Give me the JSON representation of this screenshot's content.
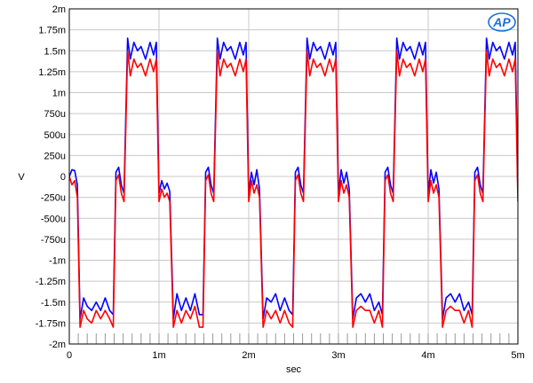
{
  "chart_data": {
    "type": "line",
    "title": "",
    "xlabel": "sec",
    "ylabel": "V",
    "xlim": [
      0,
      0.005
    ],
    "ylim": [
      -0.002,
      0.002
    ],
    "grid": true,
    "x_ticks": [
      {
        "value": 0,
        "label": "0"
      },
      {
        "value": 0.001,
        "label": "1m"
      },
      {
        "value": 0.002,
        "label": "2m"
      },
      {
        "value": 0.003,
        "label": "3m"
      },
      {
        "value": 0.004,
        "label": "4m"
      },
      {
        "value": 0.005,
        "label": "5m"
      }
    ],
    "y_ticks": [
      {
        "value": 0.002,
        "label": "2m"
      },
      {
        "value": 0.00175,
        "label": "1.75m"
      },
      {
        "value": 0.0015,
        "label": "1.5m"
      },
      {
        "value": 0.00125,
        "label": "1.25m"
      },
      {
        "value": 0.001,
        "label": "1m"
      },
      {
        "value": 0.00075,
        "label": "750u"
      },
      {
        "value": 0.0005,
        "label": "500u"
      },
      {
        "value": 0.00025,
        "label": "250u"
      },
      {
        "value": 0,
        "label": "0"
      },
      {
        "value": -0.00025,
        "label": "-250u"
      },
      {
        "value": -0.0005,
        "label": "-500u"
      },
      {
        "value": -0.00075,
        "label": "-750u"
      },
      {
        "value": -0.001,
        "label": "-1m"
      },
      {
        "value": -0.00125,
        "label": "-1.25m"
      },
      {
        "value": -0.0015,
        "label": "-1.5m"
      },
      {
        "value": -0.00175,
        "label": "-1.75m"
      },
      {
        "value": -0.002,
        "label": "-2m"
      }
    ],
    "x_minor_step": 0.0001,
    "series": [
      {
        "color": "#0000ff",
        "x": [
          0,
          3e-05,
          6e-05,
          9e-05,
          0.00012,
          0.00016,
          0.0002,
          0.00025,
          0.0003,
          0.00035,
          0.0004,
          0.00045,
          0.00049,
          0.00052,
          0.00055,
          0.00058,
          0.00061,
          0.00065,
          0.00068,
          0.00072,
          0.00076,
          0.0008,
          0.00085,
          0.0009,
          0.00094,
          0.00097,
          0.001,
          0.00103,
          0.00106,
          0.00109,
          0.00112,
          0.00116,
          0.0012,
          0.00125,
          0.0013,
          0.00135,
          0.0014,
          0.00145,
          0.00149,
          0.00152,
          0.00155,
          0.00158,
          0.00161,
          0.00165,
          0.00168,
          0.00172,
          0.00176,
          0.0018,
          0.00185,
          0.0019,
          0.00194,
          0.00197,
          0.002,
          0.00203,
          0.00206,
          0.00209,
          0.00212,
          0.00216,
          0.0022,
          0.00225,
          0.0023,
          0.00235,
          0.0024,
          0.00245,
          0.00249,
          0.00252,
          0.00255,
          0.00258,
          0.00261,
          0.00265,
          0.00268,
          0.00272,
          0.00276,
          0.0028,
          0.00285,
          0.0029,
          0.00294,
          0.00297,
          0.003,
          0.00303,
          0.00306,
          0.00309,
          0.00312,
          0.00316,
          0.0032,
          0.00325,
          0.0033,
          0.00335,
          0.0034,
          0.00345,
          0.00349,
          0.00352,
          0.00355,
          0.00358,
          0.00361,
          0.00365,
          0.00368,
          0.00372,
          0.00376,
          0.0038,
          0.00385,
          0.0039,
          0.00394,
          0.00397,
          0.004,
          0.00403,
          0.00406,
          0.00409,
          0.00412,
          0.00416,
          0.0042,
          0.00425,
          0.0043,
          0.00435,
          0.0044,
          0.00445,
          0.00449,
          0.00452,
          0.00455,
          0.00458,
          0.00461,
          0.00465,
          0.00468,
          0.00472,
          0.00476,
          0.0048,
          0.00485,
          0.0049,
          0.00494,
          0.00497,
          0.005
        ],
        "y": [
          0,
          8e-05,
          7e-05,
          -0.0001,
          -0.0017,
          -0.00145,
          -0.00155,
          -0.0016,
          -0.0015,
          -0.0016,
          -0.00145,
          -0.0016,
          -0.00165,
          5e-05,
          0.00011,
          -0.0001,
          -0.0002,
          0.00165,
          0.0014,
          0.0016,
          0.0015,
          0.00155,
          0.0014,
          0.0016,
          0.00145,
          0.0016,
          -0.0002,
          -5e-05,
          -0.00015,
          -8e-05,
          -0.00018,
          -0.0017,
          -0.0014,
          -0.0016,
          -0.00145,
          -0.0016,
          -0.0014,
          -0.00165,
          -0.00165,
          5e-05,
          0.00011,
          -0.0001,
          -0.0002,
          0.00165,
          0.0014,
          0.0016,
          0.0015,
          0.00155,
          0.0014,
          0.0016,
          0.00145,
          0.0016,
          -0.0002,
          5e-05,
          -0.0001,
          8e-05,
          -0.00015,
          -0.0017,
          -0.00145,
          -0.0015,
          -0.0014,
          -0.0016,
          -0.00145,
          -0.0016,
          -0.00165,
          5e-05,
          0.00011,
          -0.0001,
          -0.0002,
          0.00165,
          0.0014,
          0.0016,
          0.0015,
          0.00155,
          0.0014,
          0.0016,
          0.00145,
          0.0016,
          -0.0002,
          8e-05,
          -8e-05,
          5e-05,
          -0.00015,
          -0.0017,
          -0.00145,
          -0.0014,
          -0.0015,
          -0.0014,
          -0.0016,
          -0.0015,
          -0.00165,
          5e-05,
          0.00011,
          -0.0001,
          -0.0002,
          0.00165,
          0.0014,
          0.0016,
          0.0015,
          0.00155,
          0.0014,
          0.0016,
          0.00145,
          0.0016,
          -0.0002,
          8e-05,
          -8e-05,
          5e-05,
          -0.00015,
          -0.0017,
          -0.00145,
          -0.0014,
          -0.0015,
          -0.0014,
          -0.0016,
          -0.0015,
          -0.00165,
          5e-05,
          0.00011,
          -0.0001,
          -0.0002,
          0.00165,
          0.0014,
          0.0016,
          0.0015,
          0.00155,
          0.0014,
          0.0016,
          0.00145,
          0.0016,
          -0.0002
        ]
      },
      {
        "color": "#ff0000",
        "x": [
          0,
          3e-05,
          6e-05,
          9e-05,
          0.00012,
          0.00016,
          0.0002,
          0.00025,
          0.0003,
          0.00035,
          0.0004,
          0.00045,
          0.00049,
          0.00052,
          0.00055,
          0.00058,
          0.00061,
          0.00065,
          0.00068,
          0.00072,
          0.00076,
          0.0008,
          0.00085,
          0.0009,
          0.00094,
          0.00097,
          0.001,
          0.00103,
          0.00106,
          0.00109,
          0.00112,
          0.00116,
          0.0012,
          0.00125,
          0.0013,
          0.00135,
          0.0014,
          0.00145,
          0.00149,
          0.00152,
          0.00155,
          0.00158,
          0.00161,
          0.00165,
          0.00168,
          0.00172,
          0.00176,
          0.0018,
          0.00185,
          0.0019,
          0.00194,
          0.00197,
          0.002,
          0.00203,
          0.00206,
          0.00209,
          0.00212,
          0.00216,
          0.0022,
          0.00225,
          0.0023,
          0.00235,
          0.0024,
          0.00245,
          0.00249,
          0.00252,
          0.00255,
          0.00258,
          0.00261,
          0.00265,
          0.00268,
          0.00272,
          0.00276,
          0.0028,
          0.00285,
          0.0029,
          0.00294,
          0.00297,
          0.003,
          0.00303,
          0.00306,
          0.00309,
          0.00312,
          0.00316,
          0.0032,
          0.00325,
          0.0033,
          0.00335,
          0.0034,
          0.00345,
          0.00349,
          0.00352,
          0.00355,
          0.00358,
          0.00361,
          0.00365,
          0.00368,
          0.00372,
          0.00376,
          0.0038,
          0.00385,
          0.0039,
          0.00394,
          0.00397,
          0.004,
          0.00403,
          0.00406,
          0.00409,
          0.00412,
          0.00416,
          0.0042,
          0.00425,
          0.0043,
          0.00435,
          0.0044,
          0.00445,
          0.00449,
          0.00452,
          0.00455,
          0.00458,
          0.00461,
          0.00465,
          0.00468,
          0.00472,
          0.00476,
          0.0048,
          0.00485,
          0.0049,
          0.00494,
          0.00497,
          0.005
        ],
        "y": [
          0,
          -0.0001,
          -5e-05,
          -0.00025,
          -0.0018,
          -0.0016,
          -0.0017,
          -0.00175,
          -0.0016,
          -0.0017,
          -0.0016,
          -0.0017,
          -0.0018,
          -5e-05,
          2e-05,
          -0.0002,
          -0.0003,
          0.0015,
          0.0012,
          0.0014,
          0.0013,
          0.00135,
          0.0012,
          0.0014,
          0.00125,
          0.0014,
          -0.0003,
          -0.00015,
          -0.00025,
          -0.0002,
          -0.0003,
          -0.0018,
          -0.0016,
          -0.00175,
          -0.0016,
          -0.0017,
          -0.00155,
          -0.0018,
          -0.0018,
          -5e-05,
          2e-05,
          -0.0002,
          -0.0003,
          0.0015,
          0.0012,
          0.0014,
          0.0013,
          0.00135,
          0.0012,
          0.0014,
          0.00125,
          0.0014,
          -0.0003,
          -5e-05,
          -0.0002,
          -0.0001,
          -0.00025,
          -0.0018,
          -0.0016,
          -0.0017,
          -0.0016,
          -0.00175,
          -0.0016,
          -0.00175,
          -0.0018,
          -5e-05,
          2e-05,
          -0.0002,
          -0.0003,
          0.0015,
          0.0012,
          0.0014,
          0.0013,
          0.00135,
          0.0012,
          0.0014,
          0.00125,
          0.0014,
          -0.0003,
          -5e-05,
          -0.0002,
          -0.0001,
          -0.00025,
          -0.0018,
          -0.0016,
          -0.00155,
          -0.0016,
          -0.0016,
          -0.00175,
          -0.0016,
          -0.0018,
          -5e-05,
          2e-05,
          -0.0002,
          -0.0003,
          0.0015,
          0.0012,
          0.0014,
          0.0013,
          0.00135,
          0.0012,
          0.0014,
          0.00125,
          0.0014,
          -0.0003,
          -5e-05,
          -0.0002,
          -0.0001,
          -0.00025,
          -0.0018,
          -0.0016,
          -0.00155,
          -0.0016,
          -0.0016,
          -0.00175,
          -0.0016,
          -0.0018,
          -5e-05,
          2e-05,
          -0.0002,
          -0.0003,
          0.0015,
          0.0012,
          0.0014,
          0.0013,
          0.00135,
          0.0012,
          0.0014,
          0.00125,
          0.0014,
          -0.0003
        ]
      }
    ]
  },
  "logo": {
    "text": "AP",
    "color": "#1e6fd9"
  },
  "colors": {
    "grid": "#c8c8c8",
    "frame": "#000000",
    "background": "#ffffff"
  }
}
